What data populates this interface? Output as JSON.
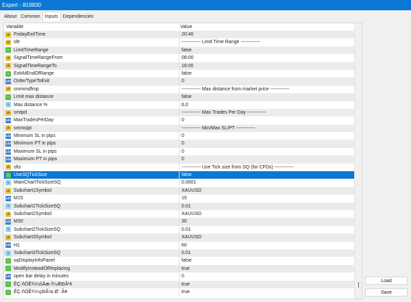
{
  "window": {
    "title": "Expert - 819830"
  },
  "tabs": [
    {
      "label": "About"
    },
    {
      "label": "Common"
    },
    {
      "label": "Inputs",
      "active": true
    },
    {
      "label": "Dependencies"
    }
  ],
  "table": {
    "headers": [
      "Variable",
      "Value"
    ],
    "rows": [
      {
        "type": "string",
        "name": "FridayExitTime",
        "value": "20:40"
      },
      {
        "type": "string",
        "name": "sltr",
        "value": "------------ Limit Time Range ------------"
      },
      {
        "type": "bool",
        "name": "LimitTimeRange",
        "value": "false"
      },
      {
        "type": "string",
        "name": "SignalTimeRangeFrom",
        "value": "08:00"
      },
      {
        "type": "string",
        "name": "SignalTimeRangeTo",
        "value": "16:00"
      },
      {
        "type": "bool",
        "name": "ExitAtEndOfRange",
        "value": "false"
      },
      {
        "type": "int",
        "name": "OrderTypeToExit",
        "value": "0"
      },
      {
        "type": "string",
        "name": "smmmdfmp",
        "value": "------------ Max distance from market price ------------"
      },
      {
        "type": "bool",
        "name": "Limit max distance",
        "value": "false"
      },
      {
        "type": "double",
        "name": "Max distance %",
        "value": "6.0"
      },
      {
        "type": "string",
        "name": "smtpd",
        "value": "------------ Max Trades Per Day ------------"
      },
      {
        "type": "int",
        "name": "MaxTradesPerDay",
        "value": "0"
      },
      {
        "type": "string",
        "name": "smmslpt",
        "value": "------------ Min/Max SL/PT ------------"
      },
      {
        "type": "int",
        "name": "Minimum SL in pips",
        "value": "0"
      },
      {
        "type": "int",
        "name": "Minimum PT in pips",
        "value": "0"
      },
      {
        "type": "int",
        "name": "Maximum SL in pips",
        "value": "0"
      },
      {
        "type": "int",
        "name": "Maximum PT in pips",
        "value": "0"
      },
      {
        "type": "string",
        "name": "slts",
        "value": "------------ Use Tick size from SQ (for CFDs) ------------"
      },
      {
        "type": "bool",
        "name": "UseSQTickSize",
        "value": "false",
        "selected": true
      },
      {
        "type": "double",
        "name": "MainChartTickSizeSQ",
        "value": "0.0001"
      },
      {
        "type": "string",
        "name": "Subchart1Symbol",
        "value": "XAUUSD"
      },
      {
        "type": "int",
        "name": "M15",
        "value": "15"
      },
      {
        "type": "double",
        "name": "Subchart1TickSizeSQ",
        "value": "0.01"
      },
      {
        "type": "string",
        "name": "Subchart2Symbol",
        "value": "XAUUSD"
      },
      {
        "type": "int",
        "name": "M30",
        "value": "30"
      },
      {
        "type": "double",
        "name": "Subchart2TickSizeSQ",
        "value": "0.01"
      },
      {
        "type": "string",
        "name": "Subchart3Symbol",
        "value": "XAUUSD"
      },
      {
        "type": "int",
        "name": "H1",
        "value": "60"
      },
      {
        "type": "double",
        "name": "Subchart3TickSizeSQ",
        "value": "0.01"
      },
      {
        "type": "bool",
        "name": "sqDisplayInfoPanel",
        "value": "false"
      },
      {
        "type": "bool",
        "name": "ModifyInsteadOfReplacing",
        "value": "true"
      },
      {
        "type": "int",
        "name": "open bar delay in minutes",
        "value": "0"
      },
      {
        "type": "bool",
        "name": "ÊÇ·ñÖÊ¾¼ûÂæ·Ì¼ÆÐÂ¹¢",
        "value": "true"
      },
      {
        "type": "bool",
        "name": "ÊÇ·ñÖÊ¾¼çÐÂ¹a·Ø¨·Â¥",
        "value": "true"
      }
    ]
  },
  "icons": {
    "string": "ab",
    "bool": "~",
    "int": "123",
    "double": "½"
  },
  "buttons": {
    "load": "Load",
    "save": "Save"
  },
  "colors": {
    "accent": "#0a78d4"
  }
}
